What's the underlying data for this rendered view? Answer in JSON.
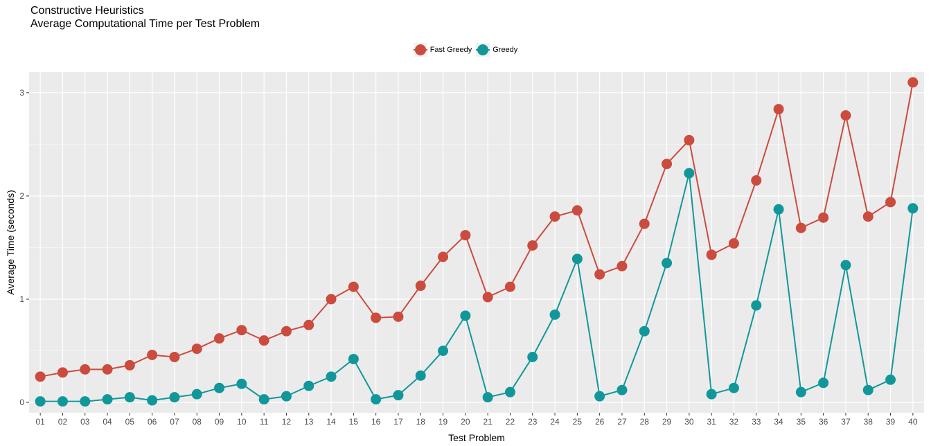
{
  "chart_data": {
    "type": "line",
    "title": "Constructive Heuristics",
    "subtitle": "Average Computational Time per Test Problem",
    "xlabel": "Test Problem",
    "ylabel": "Average Time (seconds)",
    "ylim": [
      -0.1,
      3.2
    ],
    "yticks": [
      0,
      1,
      2,
      3
    ],
    "grid": true,
    "legend_position": "top",
    "categories": [
      "01",
      "02",
      "03",
      "04",
      "05",
      "06",
      "07",
      "08",
      "09",
      "10",
      "11",
      "12",
      "13",
      "14",
      "15",
      "16",
      "17",
      "18",
      "19",
      "20",
      "21",
      "22",
      "23",
      "24",
      "25",
      "26",
      "27",
      "28",
      "29",
      "30",
      "31",
      "32",
      "33",
      "34",
      "35",
      "36",
      "37",
      "38",
      "39",
      "40"
    ],
    "series": [
      {
        "name": "Fast Greedy",
        "color": "#cb4b3f",
        "values": [
          0.25,
          0.29,
          0.32,
          0.32,
          0.36,
          0.46,
          0.44,
          0.52,
          0.62,
          0.7,
          0.6,
          0.69,
          0.75,
          1.0,
          1.12,
          0.82,
          0.83,
          1.13,
          1.41,
          1.62,
          1.02,
          1.12,
          1.52,
          1.8,
          1.86,
          1.24,
          1.32,
          1.73,
          2.31,
          2.54,
          1.43,
          1.54,
          2.15,
          2.84,
          1.69,
          1.79,
          2.78,
          1.8,
          1.94,
          3.1
        ]
      },
      {
        "name": "Greedy",
        "color": "#11979a",
        "values": [
          0.01,
          0.01,
          0.01,
          0.03,
          0.05,
          0.02,
          0.05,
          0.08,
          0.14,
          0.18,
          0.03,
          0.06,
          0.16,
          0.25,
          0.42,
          0.03,
          0.07,
          0.26,
          0.5,
          0.84,
          0.05,
          0.1,
          0.44,
          0.85,
          1.39,
          0.06,
          0.12,
          0.69,
          1.35,
          2.22,
          0.08,
          0.14,
          0.94,
          1.87,
          0.1,
          0.19,
          1.33,
          0.12,
          0.22,
          1.88
        ]
      }
    ]
  }
}
